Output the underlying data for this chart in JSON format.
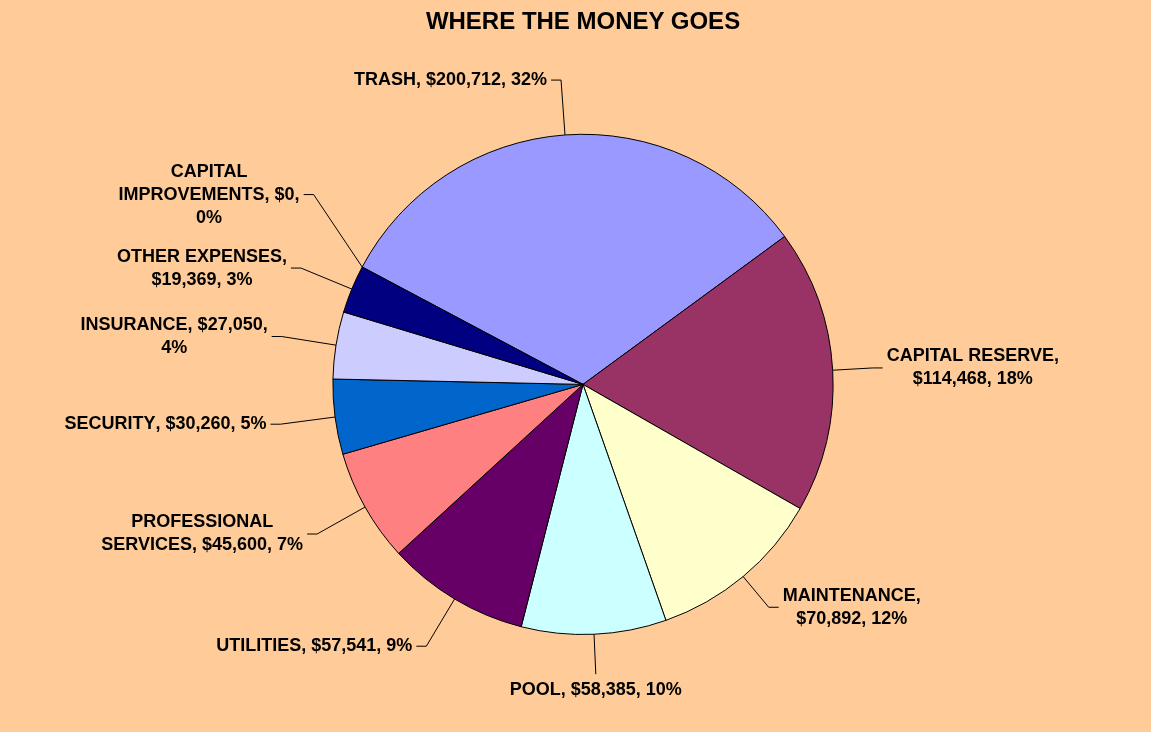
{
  "chart_data": {
    "type": "pie",
    "title": "WHERE THE MONEY GOES",
    "categories": [
      "TRASH",
      "CAPITAL RESERVE",
      "MAINTENANCE",
      "POOL",
      "UTILITIES",
      "PROFESSIONAL SERVICES",
      "SECURITY",
      "INSURANCE",
      "OTHER EXPENSES",
      "CAPITAL IMPROVEMENTS"
    ],
    "values": [
      200712,
      114468,
      70892,
      58385,
      57541,
      45600,
      30260,
      27050,
      19369,
      0
    ],
    "value_labels": [
      ", $200,712, 32%",
      ", $114,468, 18%",
      ", $70,892, 12%",
      ", $58,385, 10%",
      ", $57,541, 9%",
      ", $45,600, 7%",
      ", $30,260, 5%",
      ", $27,050, 4%",
      ", $19,369, 3%",
      ", $0, 0%"
    ],
    "colors": [
      "#9999ff",
      "#993366",
      "#ffffcc",
      "#ccffff",
      "#660066",
      "#ff8080",
      "#0066cc",
      "#ccccff",
      "#000080",
      "#ff00ff"
    ],
    "legend": false
  }
}
